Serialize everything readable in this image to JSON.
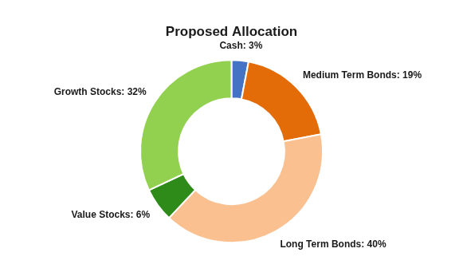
{
  "chart_data": {
    "type": "donut",
    "title": "Proposed Allocation",
    "categories": [
      "Cash: 3%",
      "Medium Term Bonds: 19%",
      "Long Term Bonds: 40%",
      "Value Stocks: 6%",
      "Growth Stocks: 32%"
    ],
    "values": [
      3,
      19,
      40,
      6,
      32
    ],
    "colors": [
      "#4472C4",
      "#E36C09",
      "#FAC090",
      "#2E8B1A",
      "#92D050"
    ]
  }
}
